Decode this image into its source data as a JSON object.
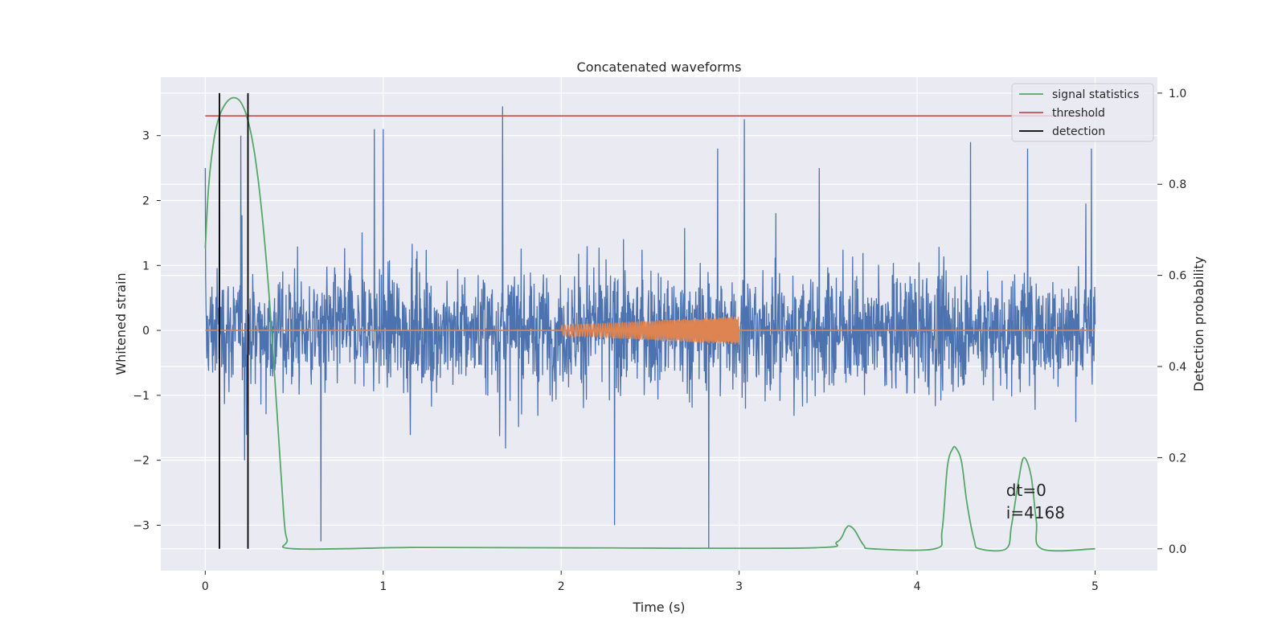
{
  "chart_data": {
    "type": "line",
    "title": "Concatenated waveforms",
    "xlabel": "Time (s)",
    "ylabel": "Whitened strain",
    "y2label": "Detection probability",
    "xlim": [
      -0.25,
      5.35
    ],
    "ylim": [
      -3.7,
      3.9
    ],
    "y2lim": [
      -0.048,
      1.035
    ],
    "x_ticks": [
      "0",
      "1",
      "2",
      "3",
      "4",
      "5"
    ],
    "y_ticks": [
      "−3",
      "−2",
      "−1",
      "0",
      "1",
      "2",
      "3"
    ],
    "y2_ticks": [
      "0.0",
      "0.2",
      "0.4",
      "0.6",
      "0.8",
      "1.0"
    ],
    "grid": true,
    "legend": {
      "placement": "top-right",
      "entries": [
        "signal statistics",
        "threshold",
        "detection"
      ]
    },
    "colors": {
      "strain": "#4c72b0",
      "injection": "#dd8452",
      "statistics": "#55a868",
      "threshold": "#c44e52",
      "detection": "#000000",
      "plot_background": "#eaeaf2",
      "grid": "#ffffff"
    },
    "series": [
      {
        "name": "",
        "axis": "left",
        "description_key": "whitened strain noise",
        "x_range": [
          0,
          5
        ],
        "typical_abs_peak": 1.5,
        "spikes": [
          [
            0.0,
            2.5
          ],
          [
            0.08,
            2.3
          ],
          [
            0.2,
            3.0
          ],
          [
            0.22,
            -2.0
          ],
          [
            0.65,
            -3.25
          ],
          [
            0.95,
            3.1
          ],
          [
            1.0,
            3.1
          ],
          [
            1.67,
            3.45
          ],
          [
            2.3,
            -3.0
          ],
          [
            2.83,
            -3.35
          ],
          [
            2.88,
            2.8
          ],
          [
            3.03,
            3.25
          ],
          [
            3.45,
            2.5
          ],
          [
            4.3,
            2.9
          ],
          [
            4.62,
            2.8
          ],
          [
            4.98,
            2.8
          ]
        ]
      },
      {
        "name": "",
        "axis": "left",
        "description_key": "injected chirp",
        "x_range": [
          2,
          3
        ],
        "amplitude_start": 0.08,
        "amplitude_end": 0.22
      },
      {
        "name": "signal statistics",
        "axis": "right",
        "x": [
          0.0,
          0.02,
          0.05,
          0.08,
          0.12,
          0.16,
          0.2,
          0.24,
          0.28,
          0.32,
          0.36,
          0.4,
          0.44,
          0.46,
          0.5,
          1.2,
          2.1,
          3.4,
          3.55,
          3.6,
          3.62,
          3.65,
          3.7,
          3.75,
          4.1,
          4.14,
          4.17,
          4.2,
          4.22,
          4.25,
          4.28,
          4.32,
          4.35,
          4.5,
          4.53,
          4.57,
          4.6,
          4.64,
          4.67,
          4.7,
          5.0
        ],
        "y": [
          0.66,
          0.8,
          0.9,
          0.95,
          0.98,
          0.99,
          0.98,
          0.94,
          0.86,
          0.73,
          0.55,
          0.32,
          0.08,
          0.02,
          0.0,
          0.003,
          0.002,
          0.002,
          0.015,
          0.045,
          0.05,
          0.04,
          0.008,
          0.0,
          0.0,
          0.04,
          0.18,
          0.22,
          0.22,
          0.19,
          0.1,
          0.02,
          0.0,
          0.0,
          0.05,
          0.15,
          0.2,
          0.16,
          0.06,
          0.0,
          0.0
        ]
      },
      {
        "name": "threshold",
        "axis": "right",
        "x": [
          0,
          5.05
        ],
        "y": [
          0.95,
          0.95
        ]
      },
      {
        "name": "detection",
        "axis": "right",
        "vertical_lines_x": [
          0.08,
          0.24
        ],
        "y_range": [
          0,
          1.0
        ]
      }
    ],
    "zero_line": {
      "axis": "left",
      "y": 0,
      "x_range": [
        0,
        5
      ]
    },
    "annotations": [
      "dt=0",
      "i=4168"
    ],
    "annotation_position": {
      "x": 4.5,
      "y": -2.55
    }
  }
}
